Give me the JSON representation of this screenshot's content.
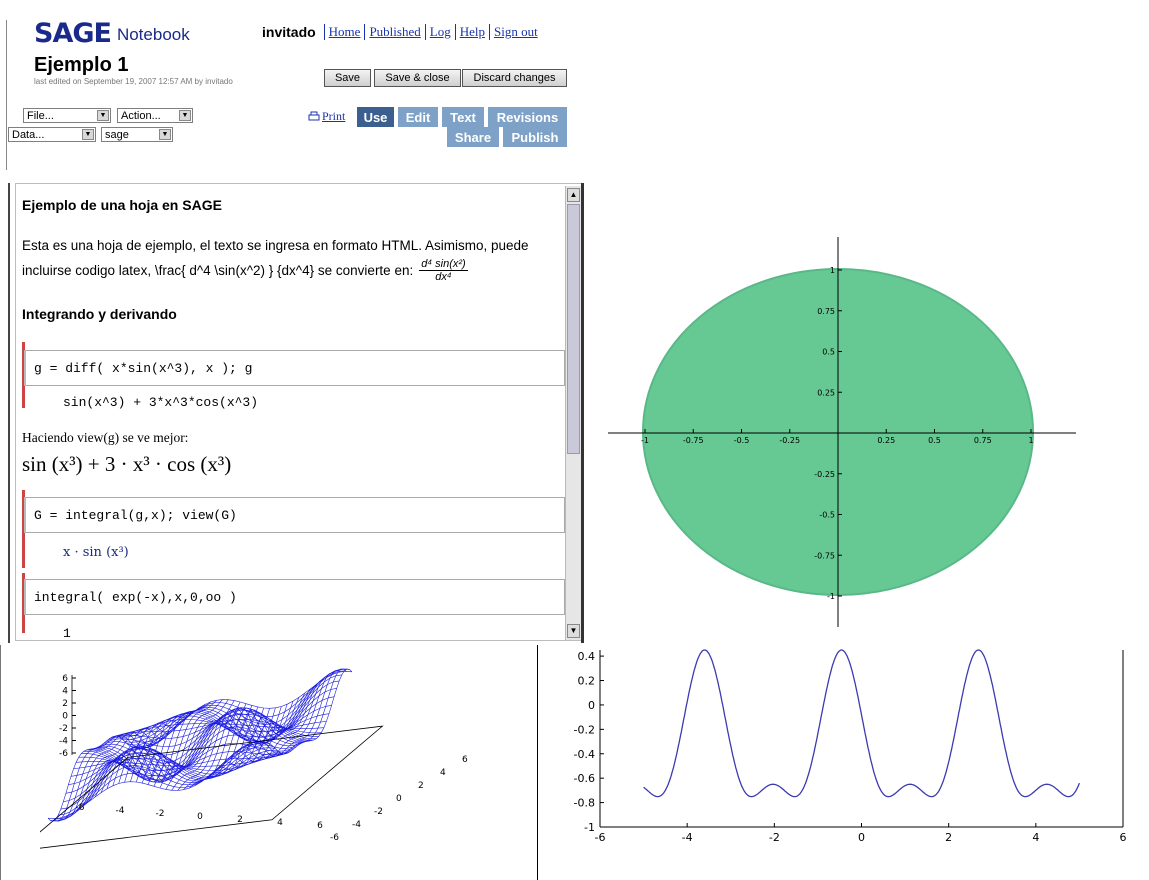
{
  "header": {
    "logo_mark": "SAGE",
    "logo_text": "Notebook",
    "user": "invitado",
    "links": [
      "Home",
      "Published",
      "Log",
      "Help",
      "Sign out"
    ]
  },
  "worksheet": {
    "title": "Ejemplo 1",
    "last_edited": "last edited on September 19, 2007 12:57 AM by invitado",
    "menus": {
      "file": "File...",
      "action": "Action...",
      "data": "Data...",
      "system": "sage"
    },
    "buttons": {
      "save": "Save",
      "save_close": "Save & close",
      "discard": "Discard changes"
    },
    "print": "Print",
    "nav": [
      "Use",
      "Edit",
      "Text",
      "Revisions",
      "Share",
      "Publish"
    ],
    "active_nav": "Use"
  },
  "content": {
    "heading": "Ejemplo de una hoja en SAGE",
    "para_line1": "Esta es una hoja de ejemplo, el texto se ingresa en formato HTML. Asimismo, puede",
    "para_line2": "incluirse codigo latex, \\frac{ d^4 \\sin(x^2) } {dx^4} se convierte en:",
    "frac_num": "d⁴ sin(x²)",
    "frac_den": "dx⁴",
    "section": "Integrando y derivando",
    "cells": [
      {
        "input": "g = diff( x*sin(x^3), x ); g",
        "output": "sin(x^3) + 3*x^3*cos(x^3)"
      },
      {
        "input": "G = integral(g,x); view(G)",
        "output": "x · sin (x³)"
      },
      {
        "input": "integral( exp(-x),x,0,oo )",
        "output": "1"
      }
    ],
    "view_text": "Haciendo view(g) se ve mejor:",
    "view_math": "sin (x³) + 3 · x³ · cos (x³)"
  },
  "plots": {
    "circle": {
      "ticks_x": [
        "-1",
        "-0.75",
        "-0.5",
        "-0.25",
        "0.25",
        "0.5",
        "0.75",
        "1"
      ],
      "ticks_y": [
        "1",
        "0.75",
        "0.5",
        "0.25",
        "-0.25",
        "-0.5",
        "-0.75",
        "-1"
      ],
      "fill": "#66c993"
    },
    "surface": {
      "z_ticks": [
        "6",
        "4",
        "2",
        "0",
        "-2",
        "-4",
        "-6"
      ],
      "x_ticks": [
        "-6",
        "-4",
        "-2",
        "0",
        "2",
        "4",
        "6"
      ],
      "y_ticks": [
        "-6",
        "-4",
        "-2",
        "0",
        "2",
        "4",
        "6"
      ],
      "color": "#1a1ae0"
    },
    "line": {
      "y_ticks": [
        "0.4",
        "0.2",
        "0",
        "-0.2",
        "-0.4",
        "-0.6",
        "-0.8",
        "-1"
      ],
      "x_ticks": [
        "-6",
        "-4",
        "-2",
        "0",
        "2",
        "4",
        "6"
      ],
      "color": "#3b3bb0"
    }
  }
}
